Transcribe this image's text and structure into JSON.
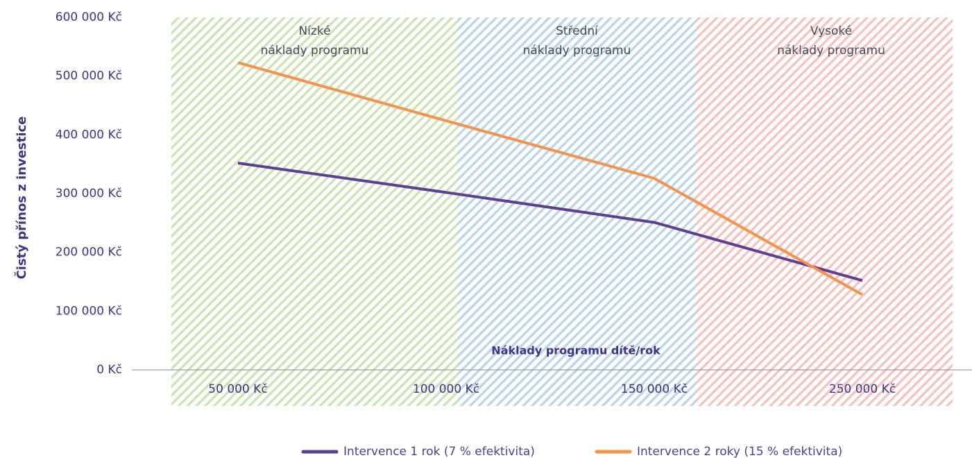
{
  "chart_data": {
    "type": "line",
    "y_axis_title": "Čistý přínos z investice",
    "x_axis_title": "Náklady programu dítě/rok",
    "categories": [
      "50 000 Kč",
      "100 000 Kč",
      "150 000 Kč",
      "250 000 Kč"
    ],
    "series": [
      {
        "name": "Intervence 1 rok (7 % efektivita)",
        "color": "#5f3f94",
        "values": [
          352000,
          302000,
          251000,
          152000
        ]
      },
      {
        "name": "Intervence 2 roky (15 % efektivita)",
        "color": "#f5924b",
        "values": [
          523000,
          424000,
          326000,
          128000
        ]
      }
    ],
    "regions": [
      {
        "label": [
          "Nízké",
          "náklady programu"
        ],
        "color": "#cfe4b6"
      },
      {
        "label": [
          "Střední",
          "náklady programu"
        ],
        "color": "#bcd6ea"
      },
      {
        "label": [
          "Vysoké",
          "náklady programu"
        ],
        "color": "#f5c4c0"
      }
    ],
    "ylim": [
      0,
      600000
    ],
    "yticks": [
      {
        "value": 0,
        "label": "0 Kč"
      },
      {
        "value": 100000,
        "label": "100 000 Kč"
      },
      {
        "value": 200000,
        "label": "200 000 Kč"
      },
      {
        "value": 300000,
        "label": "300 000 Kč"
      },
      {
        "value": 400000,
        "label": "400 000 Kč"
      },
      {
        "value": 500000,
        "label": "500 000 Kč"
      },
      {
        "value": 600000,
        "label": "600 000 Kč"
      }
    ],
    "legend": "bottom"
  }
}
